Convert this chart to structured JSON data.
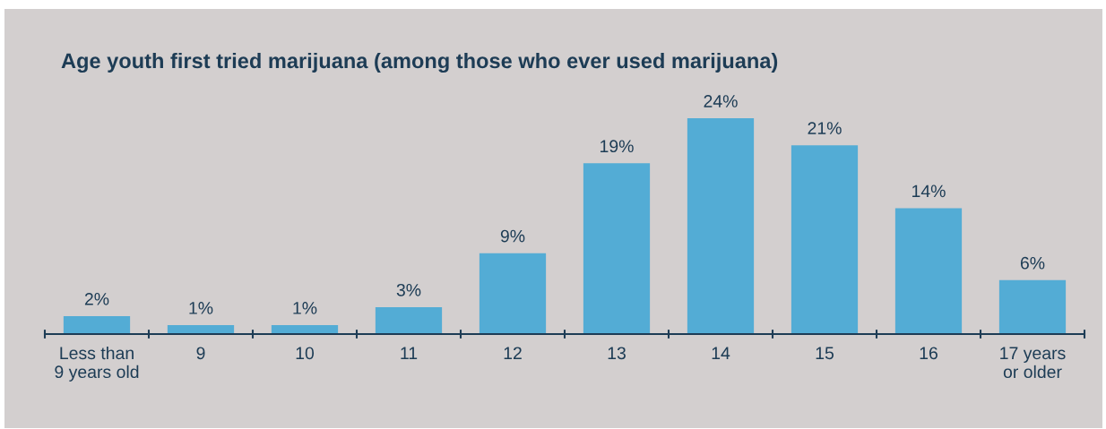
{
  "chart_data": {
    "type": "bar",
    "title": "Age youth first tried marijuana (among those who ever used marijuana)",
    "categories": [
      "Less than\n9 years old",
      "9",
      "10",
      "11",
      "12",
      "13",
      "14",
      "15",
      "16",
      "17 years\nor older"
    ],
    "values": [
      2,
      1,
      1,
      3,
      9,
      19,
      24,
      21,
      14,
      6
    ],
    "value_labels": [
      "2%",
      "1%",
      "1%",
      "3%",
      "9%",
      "19%",
      "24%",
      "21%",
      "14%",
      "6%"
    ],
    "color": "#53acd5",
    "grid": false,
    "legend": false
  }
}
